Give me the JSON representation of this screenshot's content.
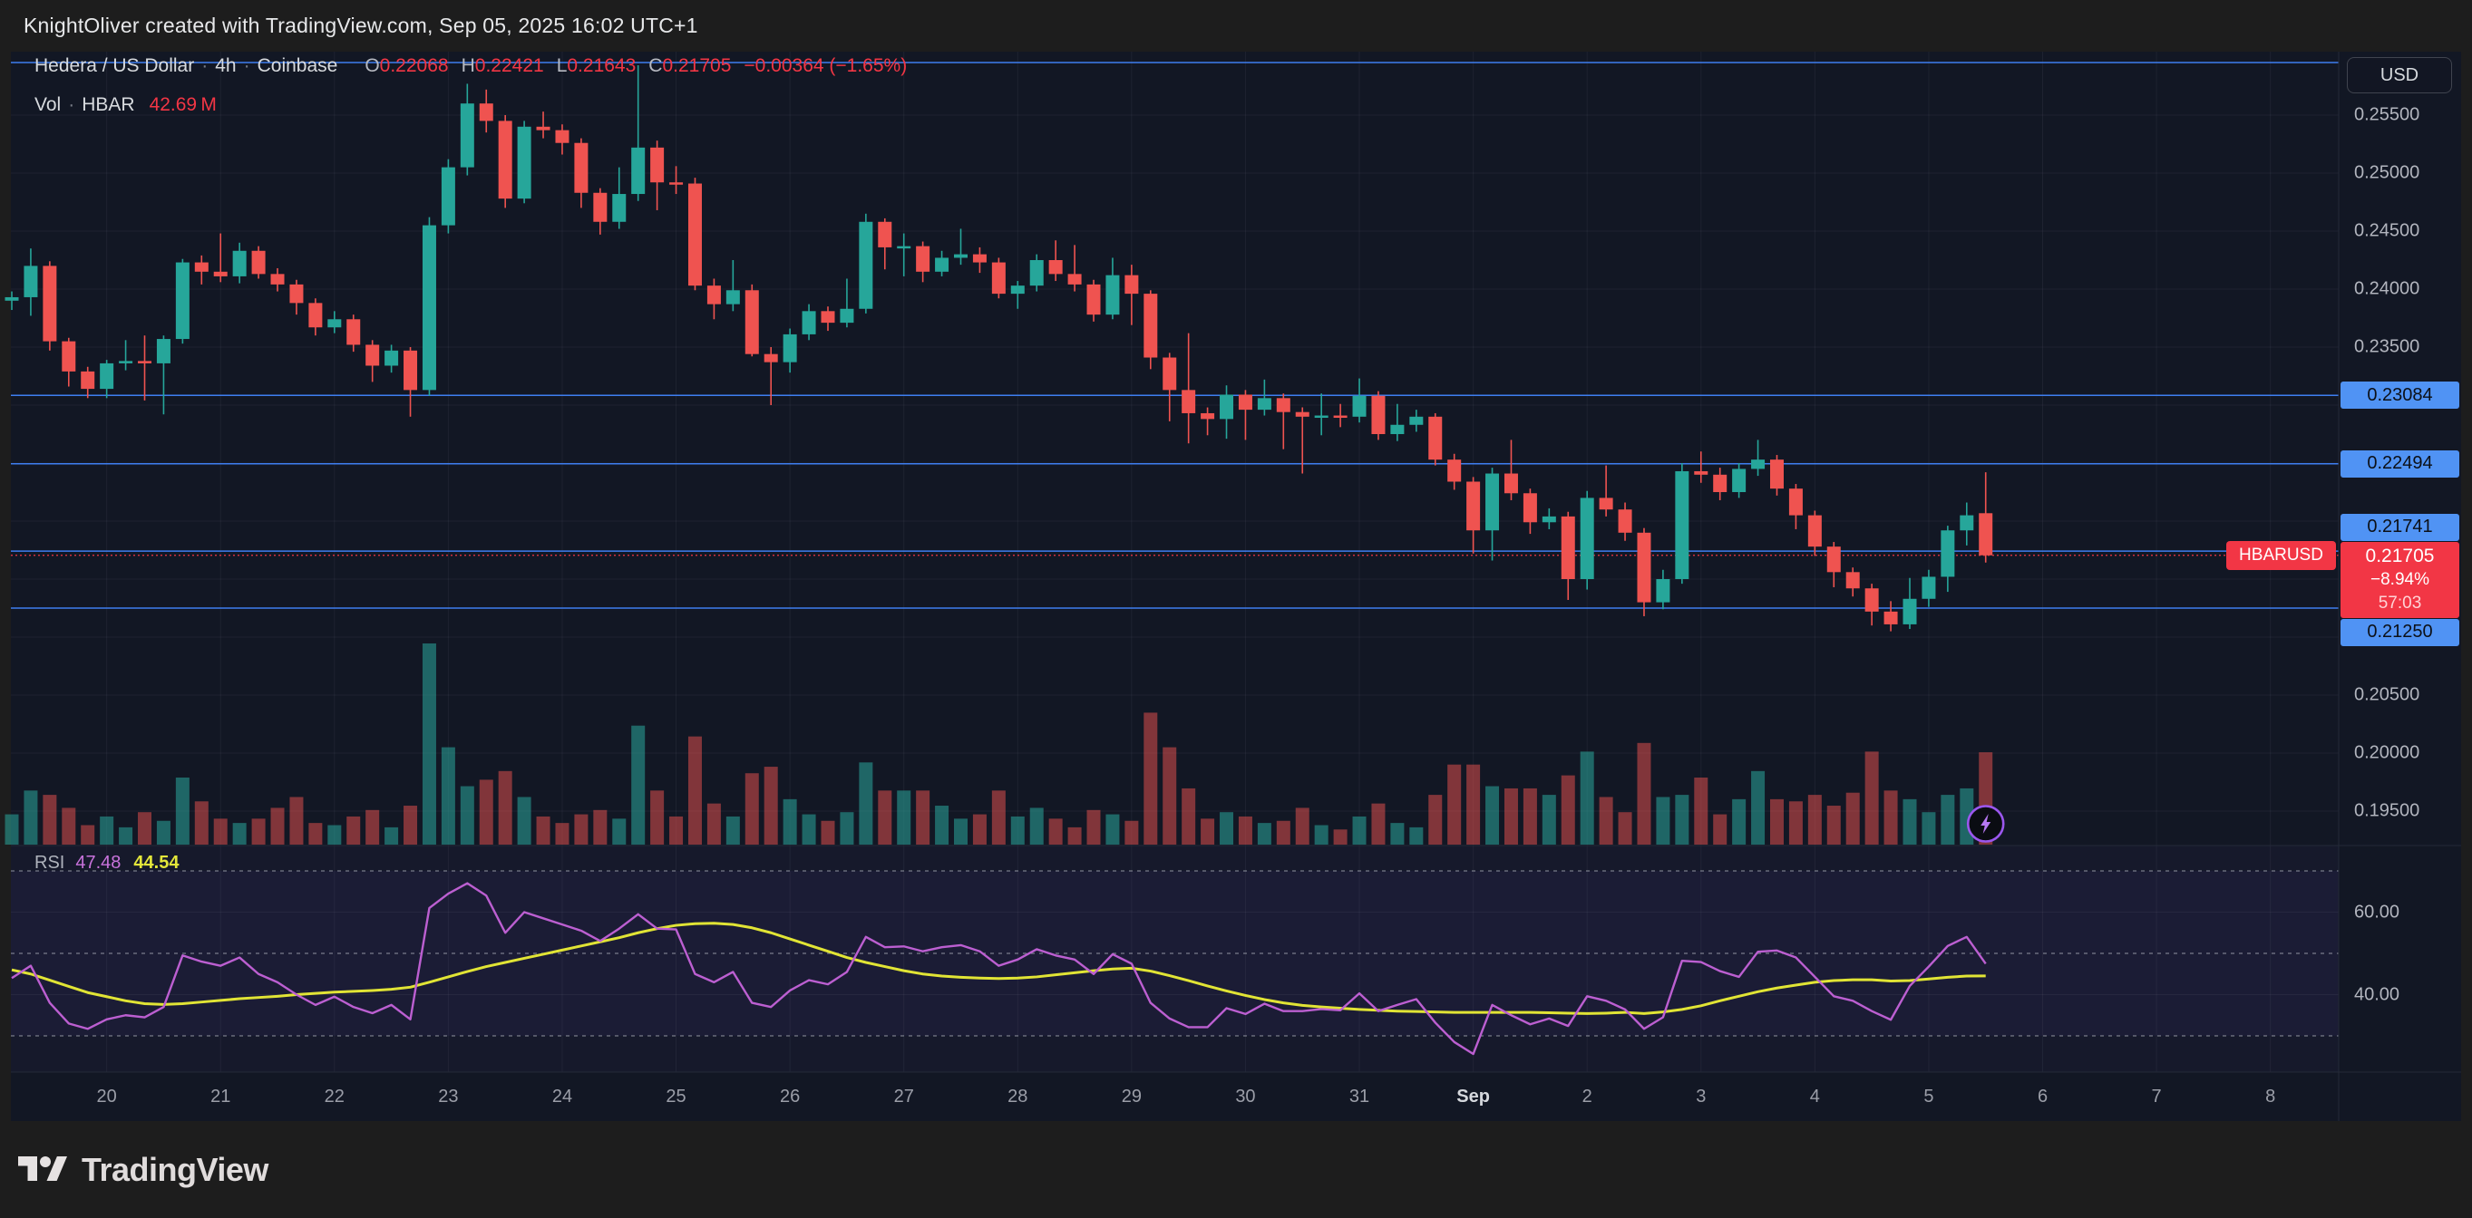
{
  "header": {
    "attribution": "KnightOliver created with TradingView.com, Sep 05, 2025 16:02 UTC+1"
  },
  "footer": {
    "brand": "TradingView"
  },
  "icons": {
    "flash": "lightning-bolt-in-circle",
    "logo": "tradingview-mark"
  },
  "symbol_info": {
    "title": "Hedera / US Dollar",
    "separator": "·",
    "interval": "4h",
    "exchange": "Coinbase",
    "ohlc": {
      "o_label": "O",
      "o": "0.22068",
      "h_label": "H",
      "h": "0.22421",
      "l_label": "L",
      "l": "0.21643",
      "c_label": "C",
      "c": "0.21705",
      "change": "−0.00364 (−1.65%)"
    }
  },
  "volume_legend": {
    "label": "Vol",
    "separator": "·",
    "unit": "HBAR",
    "value": "42.69 M"
  },
  "rsi_legend": {
    "label": "RSI",
    "rsi_value": "47.48",
    "ma_value": "44.54"
  },
  "price_axis": {
    "currency": "USD",
    "grid_labels": [
      {
        "value": 0.255,
        "label": "0.25500"
      },
      {
        "value": 0.25,
        "label": "0.25000"
      },
      {
        "value": 0.245,
        "label": "0.24500"
      },
      {
        "value": 0.24,
        "label": "0.24000"
      },
      {
        "value": 0.235,
        "label": "0.23500"
      },
      {
        "value": 0.205,
        "label": "0.20500"
      },
      {
        "value": 0.2,
        "label": "0.20000"
      },
      {
        "value": 0.195,
        "label": "0.19500"
      }
    ]
  },
  "rsi_axis": {
    "labels": [
      {
        "value": 60,
        "label": "60.00"
      },
      {
        "value": 40,
        "label": "40.00"
      }
    ]
  },
  "time_axis": {
    "labels": [
      {
        "label": "20"
      },
      {
        "label": "21"
      },
      {
        "label": "22"
      },
      {
        "label": "23"
      },
      {
        "label": "24"
      },
      {
        "label": "25"
      },
      {
        "label": "26"
      },
      {
        "label": "27"
      },
      {
        "label": "28"
      },
      {
        "label": "29"
      },
      {
        "label": "30"
      },
      {
        "label": "31"
      },
      {
        "label": "Sep",
        "bold": true
      },
      {
        "label": "2"
      },
      {
        "label": "3"
      },
      {
        "label": "4"
      },
      {
        "label": "5"
      },
      {
        "label": "6"
      },
      {
        "label": "7"
      },
      {
        "label": "8"
      }
    ]
  },
  "colors": {
    "chart_bg": "#121724",
    "frame_bg": "#1d1d1d",
    "grid": "rgba(134,141,159,0.10)",
    "pane_border": "#242a38",
    "up": "#26a69a",
    "down": "#ef5350",
    "vol_up": "rgba(42,168,156,0.55)",
    "vol_down": "rgba(239,83,80,0.50)",
    "level_line": "#3e7ef0",
    "badge_blue": "#5093f4",
    "badge_blue_text": "#0c1017",
    "accent_red": "#f23645",
    "rsi_line": "#bc5fd1",
    "rsi_ma": "#e1e435",
    "band_dash": "rgba(201,204,212,0.55)",
    "band_fill": "rgba(137,96,255,0.05)",
    "pane_tint": "rgba(137,96,255,0.035)",
    "flash_ring": "#9b57ee",
    "flash_bolt": "#b678f2"
  },
  "chart_data": {
    "type": "candlestick",
    "symbol": "HBARUSD",
    "interval": "4h",
    "title": "Hedera / US Dollar · 4h · Coinbase",
    "price_range_visible": [
      0.19203,
      0.26047
    ],
    "rsi_range_visible": [
      21.2,
      76.2
    ],
    "grid": true,
    "legend_position": "top-left",
    "last_candle": {
      "o": 0.22068,
      "h": 0.22421,
      "l": 0.21643,
      "c": 0.21705,
      "change": -0.00364,
      "change_pct": -1.65,
      "volume_m": 42.69
    },
    "level_lines": [
      {
        "value": 0.25953,
        "label": ""
      },
      {
        "value": 0.23084,
        "label": "0.23084"
      },
      {
        "value": 0.22494,
        "label": "0.22494"
      },
      {
        "value": 0.21741,
        "label": "0.21741"
      },
      {
        "value": 0.2125,
        "label": "0.21250"
      }
    ],
    "price_line": {
      "value": 0.21705,
      "label": "0.21705",
      "symbol_tag": "HBARUSD",
      "change_pct": "−8.94%",
      "countdown": "57:03"
    },
    "rsi_bands": [
      70,
      50,
      30
    ],
    "x_axis": {
      "labels": [
        "20",
        "21",
        "22",
        "23",
        "24",
        "25",
        "26",
        "27",
        "28",
        "29",
        "30",
        "31",
        "Sep",
        "2",
        "3",
        "4",
        "5",
        "6",
        "7",
        "8"
      ],
      "candles_per_day": 6,
      "first_day_start_index": 5
    },
    "volume_max_m": 93,
    "candles": [
      [
        0.239,
        0.2398,
        0.2382,
        0.2393
      ],
      [
        0.2393,
        0.2435,
        0.2377,
        0.242
      ],
      [
        0.242,
        0.2424,
        0.2347,
        0.2355
      ],
      [
        0.2355,
        0.2358,
        0.2316,
        0.2329
      ],
      [
        0.2329,
        0.2333,
        0.2306,
        0.2314
      ],
      [
        0.2314,
        0.2339,
        0.2306,
        0.2336
      ],
      [
        0.2336,
        0.2356,
        0.233,
        0.2338
      ],
      [
        0.2338,
        0.236,
        0.2304,
        0.2336
      ],
      [
        0.2336,
        0.236,
        0.2292,
        0.2357
      ],
      [
        0.2357,
        0.2426,
        0.2353,
        0.2423
      ],
      [
        0.2423,
        0.2429,
        0.2404,
        0.2415
      ],
      [
        0.2415,
        0.2448,
        0.2406,
        0.2411
      ],
      [
        0.2411,
        0.244,
        0.2405,
        0.2433
      ],
      [
        0.2433,
        0.2437,
        0.2409,
        0.2413
      ],
      [
        0.2413,
        0.2418,
        0.2398,
        0.2404
      ],
      [
        0.2404,
        0.2408,
        0.2378,
        0.2388
      ],
      [
        0.2388,
        0.2392,
        0.236,
        0.2367
      ],
      [
        0.2367,
        0.2381,
        0.2362,
        0.2374
      ],
      [
        0.2374,
        0.2378,
        0.2346,
        0.2352
      ],
      [
        0.2352,
        0.2356,
        0.232,
        0.2334
      ],
      [
        0.2334,
        0.2352,
        0.2328,
        0.2347
      ],
      [
        0.2347,
        0.235,
        0.229,
        0.2313
      ],
      [
        0.2313,
        0.2462,
        0.2308,
        0.2455
      ],
      [
        0.2455,
        0.2512,
        0.2448,
        0.2505
      ],
      [
        0.2505,
        0.2577,
        0.2498,
        0.256
      ],
      [
        0.256,
        0.2572,
        0.2535,
        0.2545
      ],
      [
        0.2545,
        0.255,
        0.247,
        0.2478
      ],
      [
        0.2478,
        0.2545,
        0.2474,
        0.254
      ],
      [
        0.254,
        0.2553,
        0.253,
        0.2537
      ],
      [
        0.2537,
        0.2542,
        0.2516,
        0.2526
      ],
      [
        0.2526,
        0.253,
        0.247,
        0.2483
      ],
      [
        0.2483,
        0.2487,
        0.2447,
        0.2458
      ],
      [
        0.2458,
        0.2505,
        0.2452,
        0.2482
      ],
      [
        0.2482,
        0.2593,
        0.2476,
        0.2522
      ],
      [
        0.2522,
        0.2528,
        0.2468,
        0.2492
      ],
      [
        0.2492,
        0.2506,
        0.2482,
        0.2491
      ],
      [
        0.2491,
        0.2496,
        0.2399,
        0.2403
      ],
      [
        0.2403,
        0.2409,
        0.2374,
        0.2387
      ],
      [
        0.2387,
        0.2425,
        0.2381,
        0.2399
      ],
      [
        0.2399,
        0.2404,
        0.2342,
        0.2344
      ],
      [
        0.2344,
        0.235,
        0.23,
        0.2337
      ],
      [
        0.2337,
        0.2366,
        0.2328,
        0.2361
      ],
      [
        0.2361,
        0.2387,
        0.2356,
        0.2381
      ],
      [
        0.2381,
        0.2385,
        0.2364,
        0.2371
      ],
      [
        0.2371,
        0.2409,
        0.2367,
        0.2383
      ],
      [
        0.2383,
        0.2465,
        0.2379,
        0.2458
      ],
      [
        0.2458,
        0.2461,
        0.2417,
        0.2436
      ],
      [
        0.2436,
        0.2448,
        0.2411,
        0.2437
      ],
      [
        0.2437,
        0.2441,
        0.2406,
        0.2415
      ],
      [
        0.2415,
        0.2433,
        0.2411,
        0.2427
      ],
      [
        0.2427,
        0.2452,
        0.2421,
        0.243
      ],
      [
        0.243,
        0.2436,
        0.2414,
        0.2423
      ],
      [
        0.2423,
        0.2427,
        0.2392,
        0.2396
      ],
      [
        0.2396,
        0.2407,
        0.2383,
        0.2403
      ],
      [
        0.2403,
        0.243,
        0.2398,
        0.2425
      ],
      [
        0.2425,
        0.2442,
        0.2407,
        0.2413
      ],
      [
        0.2413,
        0.2438,
        0.2398,
        0.2404
      ],
      [
        0.2404,
        0.2408,
        0.2372,
        0.2378
      ],
      [
        0.2378,
        0.2427,
        0.2374,
        0.2412
      ],
      [
        0.2412,
        0.2421,
        0.2369,
        0.2396
      ],
      [
        0.2396,
        0.2399,
        0.2331,
        0.2341
      ],
      [
        0.2341,
        0.2345,
        0.2286,
        0.2313
      ],
      [
        0.2313,
        0.2362,
        0.2267,
        0.2293
      ],
      [
        0.2293,
        0.2298,
        0.2274,
        0.2288
      ],
      [
        0.2288,
        0.2317,
        0.2271,
        0.2309
      ],
      [
        0.2309,
        0.2313,
        0.227,
        0.2296
      ],
      [
        0.2296,
        0.2322,
        0.2291,
        0.2306
      ],
      [
        0.2306,
        0.231,
        0.2262,
        0.2294
      ],
      [
        0.2294,
        0.2298,
        0.2241,
        0.229
      ],
      [
        0.229,
        0.231,
        0.2274,
        0.2291
      ],
      [
        0.2291,
        0.2301,
        0.2281,
        0.229
      ],
      [
        0.229,
        0.2323,
        0.2285,
        0.2308
      ],
      [
        0.2308,
        0.2312,
        0.227,
        0.2275
      ],
      [
        0.2275,
        0.2301,
        0.2269,
        0.2283
      ],
      [
        0.2283,
        0.2296,
        0.2277,
        0.229
      ],
      [
        0.229,
        0.2293,
        0.2248,
        0.2253
      ],
      [
        0.2253,
        0.2258,
        0.2227,
        0.2234
      ],
      [
        0.2234,
        0.2238,
        0.2172,
        0.2192
      ],
      [
        0.2192,
        0.2246,
        0.2166,
        0.2241
      ],
      [
        0.2241,
        0.227,
        0.2218,
        0.2224
      ],
      [
        0.2224,
        0.2228,
        0.2189,
        0.2199
      ],
      [
        0.2199,
        0.2211,
        0.2193,
        0.2204
      ],
      [
        0.2204,
        0.2208,
        0.2132,
        0.215
      ],
      [
        0.215,
        0.2226,
        0.2141,
        0.222
      ],
      [
        0.222,
        0.2248,
        0.2204,
        0.221
      ],
      [
        0.221,
        0.2216,
        0.2183,
        0.219
      ],
      [
        0.219,
        0.2194,
        0.2118,
        0.213
      ],
      [
        0.213,
        0.2158,
        0.2124,
        0.215
      ],
      [
        0.215,
        0.225,
        0.2146,
        0.2243
      ],
      [
        0.2243,
        0.226,
        0.2233,
        0.224
      ],
      [
        0.224,
        0.2246,
        0.2218,
        0.2225
      ],
      [
        0.2225,
        0.225,
        0.222,
        0.2245
      ],
      [
        0.2245,
        0.227,
        0.2239,
        0.2253
      ],
      [
        0.2253,
        0.2257,
        0.2222,
        0.2228
      ],
      [
        0.2228,
        0.2232,
        0.2193,
        0.2205
      ],
      [
        0.2205,
        0.2209,
        0.217,
        0.2178
      ],
      [
        0.2178,
        0.2182,
        0.2143,
        0.2156
      ],
      [
        0.2156,
        0.216,
        0.2135,
        0.2142
      ],
      [
        0.2142,
        0.2146,
        0.211,
        0.2122
      ],
      [
        0.2122,
        0.2131,
        0.2105,
        0.2111
      ],
      [
        0.2111,
        0.2151,
        0.2107,
        0.2133
      ],
      [
        0.2133,
        0.2158,
        0.2126,
        0.2152
      ],
      [
        0.2152,
        0.2196,
        0.2139,
        0.2192
      ],
      [
        0.2192,
        0.2216,
        0.2179,
        0.2205
      ],
      [
        0.22068,
        0.22421,
        0.21643,
        0.21705
      ]
    ],
    "volume_m": [
      14,
      25,
      23,
      17,
      9,
      13,
      8,
      15,
      11,
      31,
      20,
      12,
      10,
      12,
      17,
      22,
      10,
      9,
      13,
      16,
      8,
      18,
      93,
      45,
      27,
      30,
      34,
      22,
      13,
      10,
      14,
      16,
      12,
      55,
      25,
      13,
      50,
      19,
      13,
      33,
      36,
      21,
      14,
      11,
      15,
      38,
      25,
      25,
      25,
      18,
      12,
      14,
      25,
      13,
      17,
      12,
      8,
      16,
      14,
      11,
      61,
      45,
      26,
      12,
      15,
      13,
      10,
      11,
      17,
      9,
      7,
      13,
      19,
      10,
      8,
      23,
      37,
      37,
      27,
      26,
      26,
      23,
      32,
      43,
      22,
      15,
      47,
      22,
      23,
      31,
      14,
      21,
      34,
      21,
      20,
      23,
      18,
      24,
      43,
      25,
      21,
      15,
      23,
      26,
      42.69
    ],
    "rsi": [
      44,
      47,
      38,
      33,
      31.7,
      34,
      35,
      34.5,
      37,
      49.5,
      48,
      47,
      49,
      45,
      43,
      40,
      37.5,
      39.5,
      37,
      35.5,
      37.5,
      34,
      61,
      64.5,
      67,
      64,
      55,
      60,
      58.5,
      57,
      55.5,
      53,
      56,
      59.5,
      56,
      55.8,
      45,
      43,
      45.5,
      38,
      37,
      41,
      43.5,
      42.5,
      45.5,
      54,
      51.5,
      51.7,
      50.5,
      51.5,
      52,
      50.5,
      47,
      48.5,
      51,
      49.5,
      48.5,
      45,
      49.8,
      47.5,
      38,
      34.2,
      32.1,
      32.1,
      36.7,
      35.3,
      37.8,
      36,
      36,
      36.5,
      36.2,
      40.3,
      36,
      37.5,
      38.9,
      33.2,
      28.5,
      25.6,
      37.5,
      35,
      32.8,
      34.2,
      32.4,
      39.6,
      38.5,
      36.4,
      31.7,
      34.5,
      48.2,
      47.9,
      45.7,
      44.3,
      50.4,
      50.7,
      49,
      44.3,
      39.6,
      38.5,
      36,
      33.9,
      42.1,
      46.8,
      51.8,
      54,
      47.48
    ],
    "rsi_ma": [
      46,
      45,
      43.5,
      42,
      40.5,
      39.5,
      38.5,
      37.8,
      37.6,
      37.8,
      38.2,
      38.6,
      39,
      39.3,
      39.6,
      40,
      40.3,
      40.6,
      40.8,
      41,
      41.3,
      41.8,
      43,
      44.3,
      45.6,
      46.8,
      47.8,
      48.8,
      49.8,
      50.8,
      51.8,
      52.8,
      53.8,
      55,
      56,
      56.8,
      57.2,
      57.3,
      57,
      56.2,
      55,
      53.5,
      52,
      50.5,
      49,
      47.8,
      46.8,
      45.8,
      45,
      44.5,
      44.2,
      44,
      43.9,
      44,
      44.3,
      44.8,
      45.3,
      45.8,
      46.2,
      46.4,
      45.7,
      44.6,
      43.4,
      42.1,
      40.9,
      39.8,
      38.8,
      38,
      37.4,
      37,
      36.7,
      36.4,
      36.2,
      36,
      35.9,
      35.8,
      35.7,
      35.7,
      35.7,
      35.7,
      35.7,
      35.6,
      35.5,
      35.4,
      35.5,
      35.7,
      35.4,
      35.8,
      36.4,
      37.3,
      38.5,
      39.6,
      40.7,
      41.6,
      42.3,
      43,
      43.4,
      43.6,
      43.6,
      43.3,
      43.4,
      43.8,
      44.2,
      44.5,
      44.54
    ]
  }
}
